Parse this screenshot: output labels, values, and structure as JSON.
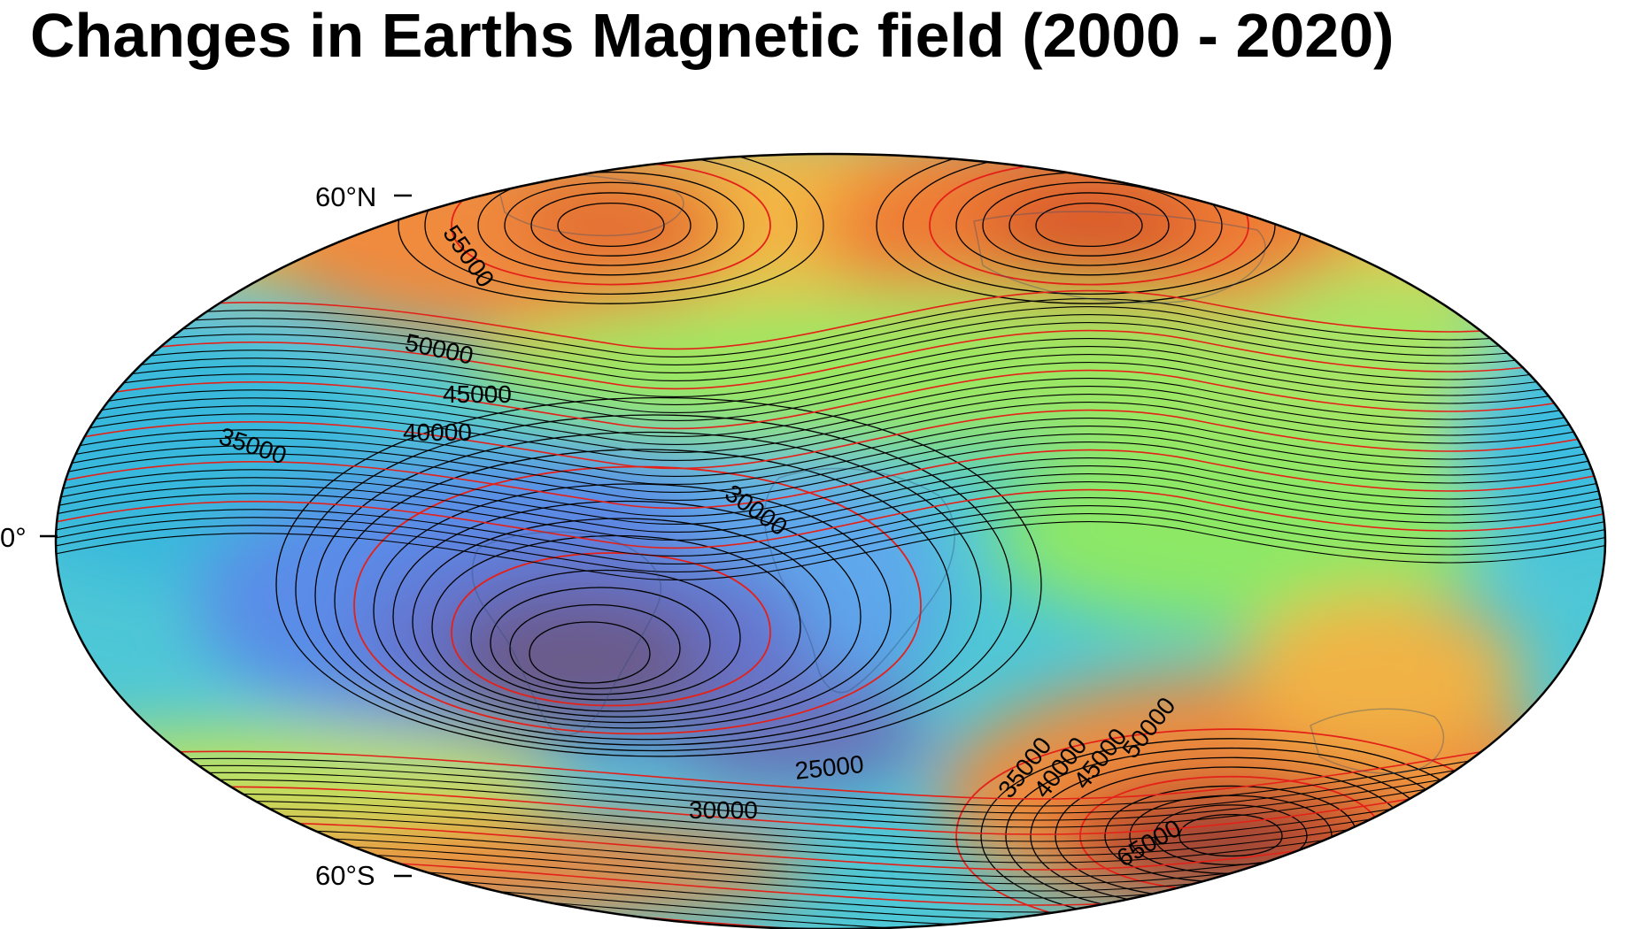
{
  "title": "Changes in Earths Magnetic field (2000 - 2020)",
  "axis": {
    "lat_labels": {
      "north": "60°N",
      "equator": "0°",
      "south": "60°S"
    }
  },
  "contours": {
    "labels": [
      "55000",
      "50000",
      "45000",
      "40000",
      "35000",
      "30000",
      "25000",
      "30000",
      "35000",
      "40000",
      "45000",
      "50000",
      "65000"
    ],
    "major_color": "#e32119",
    "minor_color": "#000000"
  },
  "colors": {
    "low": "#6b3f4d",
    "mid_low": "#5f86e6",
    "mid": "#3dc3d8",
    "mid_high": "#8fea63",
    "high": "#f1a23f",
    "max": "#9b3d2c"
  }
}
